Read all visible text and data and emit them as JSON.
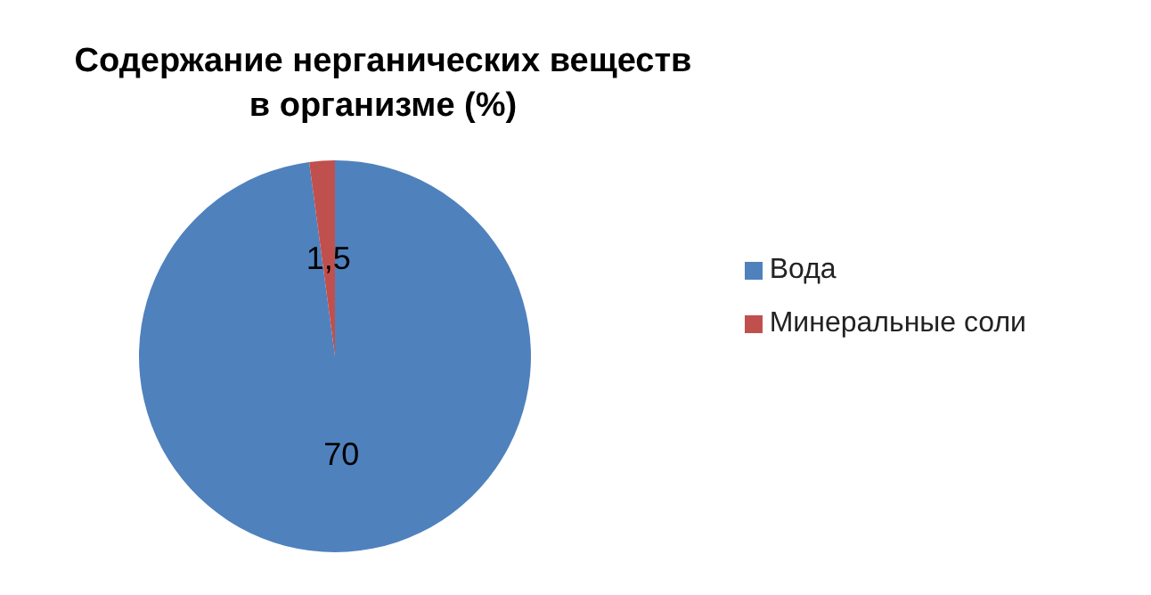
{
  "chart_data": {
    "type": "pie",
    "title": "Содержание нерганических веществ в организме (%)",
    "categories": [
      "Вода",
      "Минеральные соли"
    ],
    "values": [
      70,
      1.5
    ],
    "value_labels": [
      "70",
      "1,5"
    ],
    "colors": [
      "#4f81bd",
      "#c0504d"
    ],
    "legend": "right"
  }
}
